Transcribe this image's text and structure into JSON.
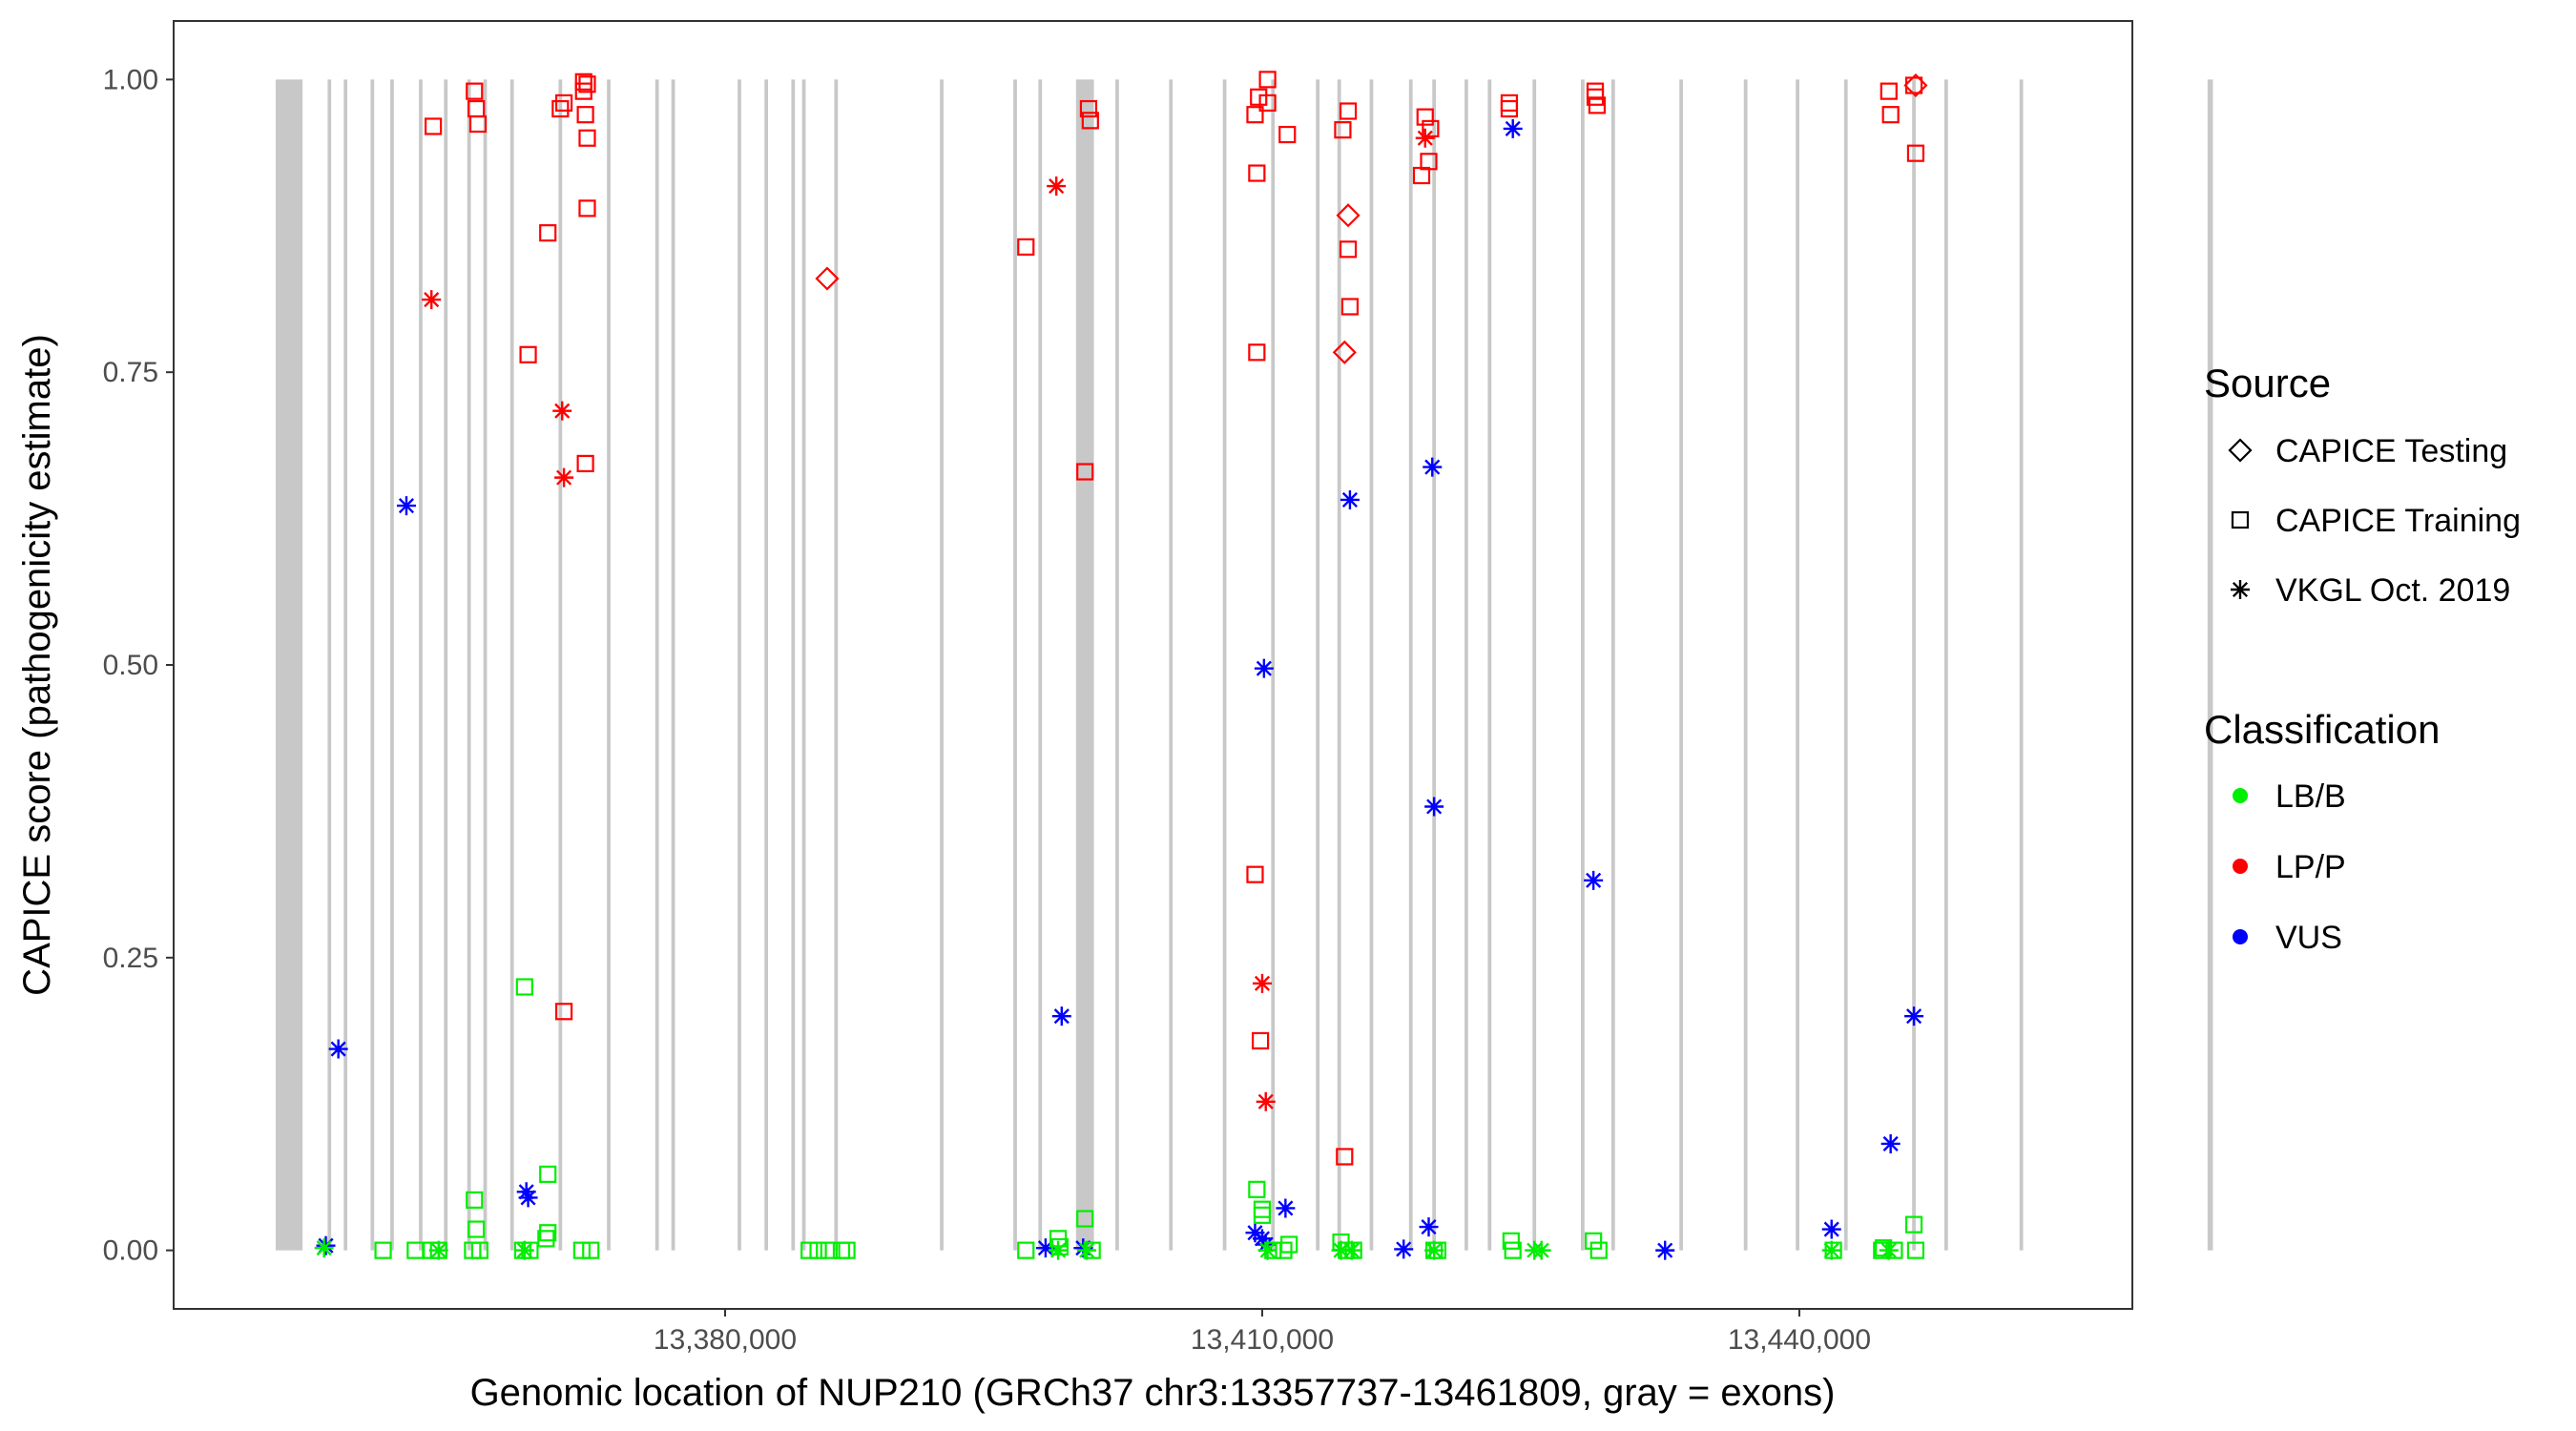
{
  "chart_data": {
    "type": "scatter",
    "title": "",
    "xlabel": "Genomic location of NUP210 (GRCh37 chr3:13357737-13461809, gray = exons)",
    "ylabel": "CAPICE score (pathogenicity estimate)",
    "xlim": [
      13349200,
      13458600
    ],
    "ylim": [
      -0.05,
      1.05
    ],
    "x_ticks": [
      13380000,
      13410000,
      13440000
    ],
    "x_tick_labels": [
      "13,380,000",
      "13,410,000",
      "13,440,000"
    ],
    "y_ticks": [
      0,
      0.25,
      0.5,
      0.75,
      1
    ],
    "y_tick_labels": [
      "0.00",
      "0.25",
      "0.50",
      "0.75",
      "1.00"
    ],
    "grid": false,
    "exons": [
      [
        13354900,
        13356400
      ],
      [
        13357800,
        13358000
      ],
      [
        13358700,
        13358900
      ],
      [
        13360200,
        13360400
      ],
      [
        13361300,
        13361500
      ],
      [
        13362900,
        13363100
      ],
      [
        13364300,
        13364500
      ],
      [
        13365600,
        13365800
      ],
      [
        13366500,
        13366700
      ],
      [
        13368000,
        13368200
      ],
      [
        13370700,
        13370900
      ],
      [
        13373400,
        13373600
      ],
      [
        13376100,
        13376300
      ],
      [
        13377000,
        13377200
      ],
      [
        13380700,
        13380900
      ],
      [
        13382200,
        13382400
      ],
      [
        13383700,
        13383900
      ],
      [
        13384300,
        13384500
      ],
      [
        13386100,
        13386300
      ],
      [
        13392000,
        13392200
      ],
      [
        13396100,
        13396300
      ],
      [
        13397500,
        13397700
      ],
      [
        13399600,
        13400600
      ],
      [
        13401800,
        13402000
      ],
      [
        13404800,
        13405000
      ],
      [
        13407800,
        13408000
      ],
      [
        13410500,
        13410700
      ],
      [
        13413000,
        13413200
      ],
      [
        13414200,
        13414400
      ],
      [
        13416000,
        13416200
      ],
      [
        13418200,
        13418400
      ],
      [
        13419500,
        13419700
      ],
      [
        13421300,
        13421500
      ],
      [
        13422600,
        13422800
      ],
      [
        13425100,
        13425300
      ],
      [
        13427800,
        13428000
      ],
      [
        13429500,
        13429700
      ],
      [
        13433300,
        13433500
      ],
      [
        13436900,
        13437100
      ],
      [
        13439800,
        13440000
      ],
      [
        13442500,
        13442700
      ],
      [
        13446300,
        13446500
      ],
      [
        13448100,
        13448300
      ],
      [
        13452300,
        13452500
      ],
      [
        13462800,
        13463100
      ]
    ],
    "legend": {
      "placement": "right",
      "source_title": "Source",
      "source_entries": [
        {
          "label": "CAPICE Testing",
          "shape": "diamond"
        },
        {
          "label": "CAPICE Training",
          "shape": "square"
        },
        {
          "label": "VKGL Oct. 2019",
          "shape": "asterisk"
        }
      ],
      "class_title": "Classification",
      "class_entries": [
        {
          "label": "LB/B",
          "color": "#00ee00"
        },
        {
          "label": "LP/P",
          "color": "#ff0000"
        },
        {
          "label": "VUS",
          "color": "#0000ff"
        }
      ]
    },
    "series": [
      {
        "source": "CAPICE Training",
        "classification": "LP/P",
        "color": "#ff0000",
        "shape": "square",
        "points": [
          [
            13363700,
            0.96
          ],
          [
            13366000,
            0.99
          ],
          [
            13366100,
            0.975
          ],
          [
            13366200,
            0.962
          ],
          [
            13369000,
            0.765
          ],
          [
            13370100,
            0.869
          ],
          [
            13371000,
            0.98
          ],
          [
            13370800,
            0.975
          ],
          [
            13371000,
            0.204
          ],
          [
            13372100,
            0.998
          ],
          [
            13372300,
            0.996
          ],
          [
            13372100,
            0.99
          ],
          [
            13372200,
            0.97
          ],
          [
            13372300,
            0.95
          ],
          [
            13372300,
            0.89
          ],
          [
            13372200,
            0.672
          ],
          [
            13396800,
            0.857
          ],
          [
            13400300,
            0.975
          ],
          [
            13400400,
            0.965
          ],
          [
            13400100,
            0.665
          ],
          [
            13409800,
            0.985
          ],
          [
            13410300,
            1.0
          ],
          [
            13410300,
            0.98
          ],
          [
            13409600,
            0.97
          ],
          [
            13411400,
            0.953
          ],
          [
            13409700,
            0.92
          ],
          [
            13409700,
            0.767
          ],
          [
            13409600,
            0.321
          ],
          [
            13409900,
            0.179
          ],
          [
            13414800,
            0.973
          ],
          [
            13414500,
            0.957
          ],
          [
            13414800,
            0.855
          ],
          [
            13414900,
            0.806
          ],
          [
            13414600,
            0.08
          ],
          [
            13419100,
            0.968
          ],
          [
            13419400,
            0.958
          ],
          [
            13419300,
            0.93
          ],
          [
            13418900,
            0.918
          ],
          [
            13423800,
            0.98
          ],
          [
            13423800,
            0.975
          ],
          [
            13428600,
            0.99
          ],
          [
            13428600,
            0.985
          ],
          [
            13428700,
            0.978
          ],
          [
            13445000,
            0.99
          ],
          [
            13445100,
            0.97
          ],
          [
            13446500,
            0.937
          ],
          [
            13446400,
            0.995
          ]
        ]
      },
      {
        "source": "CAPICE Testing",
        "classification": "LP/P",
        "color": "#ff0000",
        "shape": "diamond",
        "points": [
          [
            13385700,
            0.83
          ],
          [
            13414800,
            0.884
          ],
          [
            13414600,
            0.767
          ],
          [
            13446500,
            0.995
          ]
        ]
      },
      {
        "source": "VKGL Oct. 2019",
        "classification": "LP/P",
        "color": "#ff0000",
        "shape": "asterisk",
        "points": [
          [
            13363600,
            0.812
          ],
          [
            13370900,
            0.717
          ],
          [
            13371000,
            0.66
          ],
          [
            13398500,
            0.909
          ],
          [
            13410000,
            0.228
          ],
          [
            13410200,
            0.127
          ],
          [
            13419100,
            0.95
          ]
        ]
      },
      {
        "source": "VKGL Oct. 2019",
        "classification": "VUS",
        "color": "#0000ff",
        "shape": "asterisk",
        "points": [
          [
            13358400,
            0.172
          ],
          [
            13357700,
            0.004
          ],
          [
            13362200,
            0.636
          ],
          [
            13368900,
            0.05
          ],
          [
            13369000,
            0.045
          ],
          [
            13397900,
            0.002
          ],
          [
            13398800,
            0.2
          ],
          [
            13400000,
            0.002
          ],
          [
            13410100,
            0.497
          ],
          [
            13409600,
            0.015
          ],
          [
            13410000,
            0.01
          ],
          [
            13410200,
            0.005
          ],
          [
            13411300,
            0.036
          ],
          [
            13414900,
            0.641
          ],
          [
            13417900,
            0.001
          ],
          [
            13419500,
            0.669
          ],
          [
            13419600,
            0.379
          ],
          [
            13419300,
            0.02
          ],
          [
            13424000,
            0.958
          ],
          [
            13428500,
            0.316
          ],
          [
            13432500,
            0.0
          ],
          [
            13441800,
            0.018
          ],
          [
            13445100,
            0.091
          ],
          [
            13446400,
            0.2
          ]
        ]
      },
      {
        "source": "CAPICE Training",
        "classification": "LB/B",
        "color": "#00ee00",
        "shape": "square",
        "points": [
          [
            13366000,
            0.043
          ],
          [
            13366100,
            0.018
          ],
          [
            13368800,
            0.225
          ],
          [
            13370100,
            0.065
          ],
          [
            13370100,
            0.015
          ],
          [
            13370000,
            0.01
          ],
          [
            13360900,
            0.0
          ],
          [
            13362700,
            0.0
          ],
          [
            13364000,
            0.0
          ],
          [
            13363600,
            0.0
          ],
          [
            13365900,
            0.0
          ],
          [
            13366300,
            0.0
          ],
          [
            13368700,
            0.0
          ],
          [
            13369100,
            0.0
          ],
          [
            13372000,
            0.0
          ],
          [
            13372500,
            0.0
          ],
          [
            13384700,
            0.0
          ],
          [
            13385200,
            0.0
          ],
          [
            13385800,
            0.0
          ],
          [
            13386500,
            0.0
          ],
          [
            13386800,
            0.0
          ],
          [
            13396800,
            0.0
          ],
          [
            13398600,
            0.01
          ],
          [
            13398700,
            0.003
          ],
          [
            13400100,
            0.027
          ],
          [
            13400500,
            0.0
          ],
          [
            13409700,
            0.052
          ],
          [
            13410000,
            0.035
          ],
          [
            13410000,
            0.03
          ],
          [
            13410600,
            0.0
          ],
          [
            13411200,
            0.0
          ],
          [
            13411500,
            0.005
          ],
          [
            13414400,
            0.007
          ],
          [
            13414700,
            0.0
          ],
          [
            13415100,
            0.0
          ],
          [
            13419600,
            0.0
          ],
          [
            13419800,
            0.0
          ],
          [
            13423900,
            0.008
          ],
          [
            13424000,
            0.0
          ],
          [
            13428500,
            0.008
          ],
          [
            13428800,
            0.0
          ],
          [
            13441900,
            0.0
          ],
          [
            13444600,
            0.0
          ],
          [
            13444700,
            0.002
          ],
          [
            13445300,
            0.0
          ],
          [
            13446400,
            0.022
          ],
          [
            13446500,
            0.0
          ]
        ]
      },
      {
        "source": "VKGL Oct. 2019",
        "classification": "LB/B",
        "color": "#00ee00",
        "shape": "asterisk",
        "points": [
          [
            13357600,
            0.002
          ],
          [
            13364000,
            0.0
          ],
          [
            13368800,
            0.0
          ],
          [
            13398600,
            0.0
          ],
          [
            13400200,
            0.0
          ],
          [
            13410300,
            0.0
          ],
          [
            13414400,
            0.0
          ],
          [
            13415000,
            0.0
          ],
          [
            13419600,
            0.0
          ],
          [
            13425200,
            0.0
          ],
          [
            13425600,
            0.0
          ],
          [
            13441800,
            0.0
          ],
          [
            13445000,
            0.0
          ]
        ]
      }
    ]
  }
}
